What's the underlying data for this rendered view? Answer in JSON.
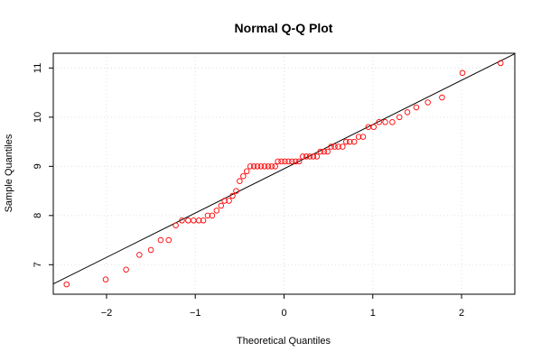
{
  "chart_data": {
    "type": "scatter",
    "title": "Normal Q-Q Plot",
    "xlabel": "Theoretical Quantiles",
    "ylabel": "Sample Quantiles",
    "xlim": [
      -2.6,
      2.6
    ],
    "ylim": [
      6.4,
      11.3
    ],
    "xticks": [
      -2,
      -1,
      0,
      1,
      2
    ],
    "xtick_labels": [
      "−2",
      "−1",
      "0",
      "1",
      "2"
    ],
    "yticks": [
      7,
      8,
      9,
      10,
      11
    ],
    "yticks_labels": [
      "7",
      "8",
      "9",
      "10",
      "11"
    ],
    "grid": true,
    "point_color": "#ff0000",
    "line_color": "#000000",
    "reference_line": {
      "intercept": 8.95,
      "slope": 0.9
    },
    "points": [
      {
        "x": -2.45,
        "y": 6.6
      },
      {
        "x": -2.01,
        "y": 6.7
      },
      {
        "x": -1.78,
        "y": 6.9
      },
      {
        "x": -1.63,
        "y": 7.2
      },
      {
        "x": -1.5,
        "y": 7.3
      },
      {
        "x": -1.39,
        "y": 7.5
      },
      {
        "x": -1.3,
        "y": 7.5
      },
      {
        "x": -1.22,
        "y": 7.8
      },
      {
        "x": -1.15,
        "y": 7.9
      },
      {
        "x": -1.08,
        "y": 7.9
      },
      {
        "x": -1.02,
        "y": 7.9
      },
      {
        "x": -0.96,
        "y": 7.9
      },
      {
        "x": -0.91,
        "y": 7.9
      },
      {
        "x": -0.86,
        "y": 8.0
      },
      {
        "x": -0.81,
        "y": 8.0
      },
      {
        "x": -0.76,
        "y": 8.1
      },
      {
        "x": -0.71,
        "y": 8.2
      },
      {
        "x": -0.67,
        "y": 8.3
      },
      {
        "x": -0.62,
        "y": 8.3
      },
      {
        "x": -0.58,
        "y": 8.4
      },
      {
        "x": -0.54,
        "y": 8.5
      },
      {
        "x": -0.5,
        "y": 8.7
      },
      {
        "x": -0.46,
        "y": 8.8
      },
      {
        "x": -0.42,
        "y": 8.9
      },
      {
        "x": -0.38,
        "y": 9.0
      },
      {
        "x": -0.34,
        "y": 9.0
      },
      {
        "x": -0.3,
        "y": 9.0
      },
      {
        "x": -0.26,
        "y": 9.0
      },
      {
        "x": -0.22,
        "y": 9.0
      },
      {
        "x": -0.18,
        "y": 9.0
      },
      {
        "x": -0.14,
        "y": 9.0
      },
      {
        "x": -0.1,
        "y": 9.0
      },
      {
        "x": -0.07,
        "y": 9.1
      },
      {
        "x": -0.03,
        "y": 9.1
      },
      {
        "x": 0.01,
        "y": 9.1
      },
      {
        "x": 0.05,
        "y": 9.1
      },
      {
        "x": 0.09,
        "y": 9.1
      },
      {
        "x": 0.13,
        "y": 9.1
      },
      {
        "x": 0.17,
        "y": 9.1
      },
      {
        "x": 0.21,
        "y": 9.2
      },
      {
        "x": 0.25,
        "y": 9.2
      },
      {
        "x": 0.29,
        "y": 9.2
      },
      {
        "x": 0.33,
        "y": 9.2
      },
      {
        "x": 0.37,
        "y": 9.2
      },
      {
        "x": 0.41,
        "y": 9.3
      },
      {
        "x": 0.45,
        "y": 9.3
      },
      {
        "x": 0.49,
        "y": 9.3
      },
      {
        "x": 0.53,
        "y": 9.4
      },
      {
        "x": 0.57,
        "y": 9.4
      },
      {
        "x": 0.61,
        "y": 9.4
      },
      {
        "x": 0.66,
        "y": 9.4
      },
      {
        "x": 0.7,
        "y": 9.5
      },
      {
        "x": 0.74,
        "y": 9.5
      },
      {
        "x": 0.79,
        "y": 9.5
      },
      {
        "x": 0.84,
        "y": 9.6
      },
      {
        "x": 0.89,
        "y": 9.6
      },
      {
        "x": 0.95,
        "y": 9.8
      },
      {
        "x": 1.01,
        "y": 9.8
      },
      {
        "x": 1.07,
        "y": 9.9
      },
      {
        "x": 1.14,
        "y": 9.9
      },
      {
        "x": 1.22,
        "y": 9.9
      },
      {
        "x": 1.3,
        "y": 10.0
      },
      {
        "x": 1.39,
        "y": 10.1
      },
      {
        "x": 1.49,
        "y": 10.2
      },
      {
        "x": 1.62,
        "y": 10.3
      },
      {
        "x": 1.78,
        "y": 10.4
      },
      {
        "x": 2.01,
        "y": 10.9
      },
      {
        "x": 2.44,
        "y": 11.1
      }
    ]
  }
}
